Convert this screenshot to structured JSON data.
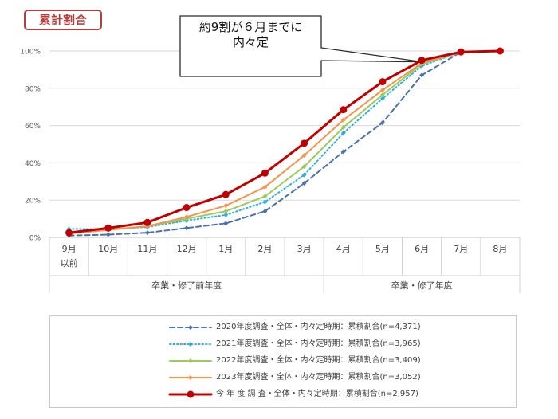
{
  "badge": "累計割合",
  "callout": {
    "line1": "約9割が６月までに",
    "line2": "内々定"
  },
  "colors": {
    "s2020": "#4a72a8",
    "s2021": "#33aedc",
    "s2022": "#9ccb5c",
    "s2023": "#f4944e",
    "current": "#c00000",
    "badge": "#b0413e",
    "grid": "#d9d9d9"
  },
  "chart_data": {
    "type": "line",
    "categories": [
      [
        "9月",
        "以前"
      ],
      [
        "10月"
      ],
      [
        "11月"
      ],
      [
        "12月"
      ],
      [
        "1月"
      ],
      [
        "2月"
      ],
      [
        "3月"
      ],
      [
        "4月"
      ],
      [
        "5月"
      ],
      [
        "6月"
      ],
      [
        "7月"
      ],
      [
        "8月"
      ]
    ],
    "groups": [
      {
        "label": "卒業・修了前年度",
        "from": 0,
        "to": 6
      },
      {
        "label": "卒業・修了年度",
        "from": 7,
        "to": 11
      }
    ],
    "yticks": [
      "0%",
      "20%",
      "40%",
      "60%",
      "80%",
      "100%"
    ],
    "ylim": [
      0,
      100
    ],
    "series": [
      {
        "name": "2020年度調査・全体・内々定時期：累積割合(n=4,371)",
        "style": "dash",
        "marker": "diamond",
        "colorKey": "s2020",
        "values": [
          1,
          1.5,
          2.5,
          5,
          7.5,
          14,
          29,
          46,
          61.5,
          87,
          99.5,
          100
        ]
      },
      {
        "name": "2021年度調査・全体・内々定時期：累積割合(n=3,965)",
        "style": "dot",
        "marker": "diamond",
        "colorKey": "s2021",
        "values": [
          4.5,
          4.5,
          5.5,
          9,
          12,
          19,
          33.5,
          56,
          74.5,
          92,
          99.5,
          100
        ]
      },
      {
        "name": "2022年度調査・全体・内々定時期：累積割合(n=3,409)",
        "style": "solid",
        "marker": "diamond",
        "colorKey": "s2022",
        "values": [
          2,
          4,
          6,
          10,
          14,
          22,
          38,
          59,
          76.5,
          93,
          99.5,
          100
        ]
      },
      {
        "name": "2023年度調査・全体・内々定時期：累積割合(n=3,052)",
        "style": "solid",
        "marker": "diamond",
        "colorKey": "s2023",
        "values": [
          2,
          4,
          6,
          11,
          17,
          27,
          44,
          63,
          79,
          93.5,
          99.5,
          100
        ]
      },
      {
        "name": "今 年 度 調 査・全体・内々定時期：累積割合(n=2,957)",
        "style": "thick",
        "marker": "circle",
        "colorKey": "current",
        "values": [
          2.5,
          5,
          8,
          16,
          23,
          34.5,
          50.5,
          68.5,
          83.5,
          95,
          99.5,
          100
        ]
      }
    ]
  }
}
